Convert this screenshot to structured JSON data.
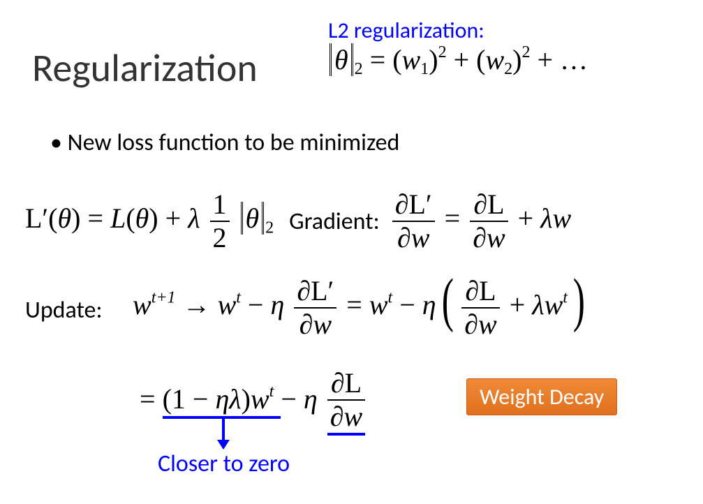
{
  "title": "Regularization",
  "l2_label": "L2 regularization:",
  "l2_formula": {
    "lhs_var": "θ",
    "lhs_sub": "2",
    "rhs_open": "= (",
    "w1": "w",
    "w1_sub": "1",
    "close1": ")",
    "sq": "2",
    "plus": " + (",
    "w2": "w",
    "w2_sub": "2",
    "close2": ")",
    "dots": " + …"
  },
  "bullet1": "New loss function to be minimized",
  "loss_eq": {
    "Lp": "L′(",
    "theta1": "θ",
    "mid1": ") = ",
    "L": "L",
    "open2": "(",
    "theta2": "θ",
    "close2": ") + ",
    "lambda": "λ",
    "half_num": "1",
    "half_den": "2",
    "norm_var": "θ",
    "norm_sub": "2"
  },
  "gradient_label": "Gradient:",
  "grad_eq": {
    "num1": "∂L′",
    "den1": "∂w",
    "eq": " = ",
    "num2": "∂L",
    "den2": "∂w",
    "plus": " + ",
    "lambda": "λ",
    "w": "w"
  },
  "update_label": "Update:",
  "update1": {
    "w": "w",
    "tp1": "t+1",
    "arrow": " → ",
    "wt": "w",
    "t": "t",
    "minus": " − ",
    "eta": "η",
    "num1": "∂L′",
    "den1": "∂w",
    "eq": " = ",
    "wt2": "w",
    "t2": "t",
    "minus2": " − ",
    "eta2": "η",
    "num2": "∂L",
    "den2": "∂w",
    "plus": " + ",
    "lambda": "λ",
    "wt3": "w",
    "t3": "t"
  },
  "update2": {
    "eq": "= ",
    "open": "(1 − ",
    "eta": "η",
    "lambda": "λ",
    "close": ")",
    "w": "w",
    "t": "t",
    "minus": " − ",
    "eta2": "η",
    "num": "∂L",
    "den": "∂w"
  },
  "wd_badge": "Weight Decay",
  "closer": "Closer to zero",
  "colors": {
    "accent_blue": "#0000ff",
    "badge_bg_top": "#f08a36",
    "badge_bg_bottom": "#e0701e",
    "badge_border": "#c86018",
    "text": "#000000",
    "title": "#333333",
    "background": "#ffffff"
  },
  "fonts": {
    "ui": "Calibri",
    "math": "Times New Roman",
    "title_size_pt": 42,
    "body_size_pt": 26,
    "math_size_pt": 30
  }
}
